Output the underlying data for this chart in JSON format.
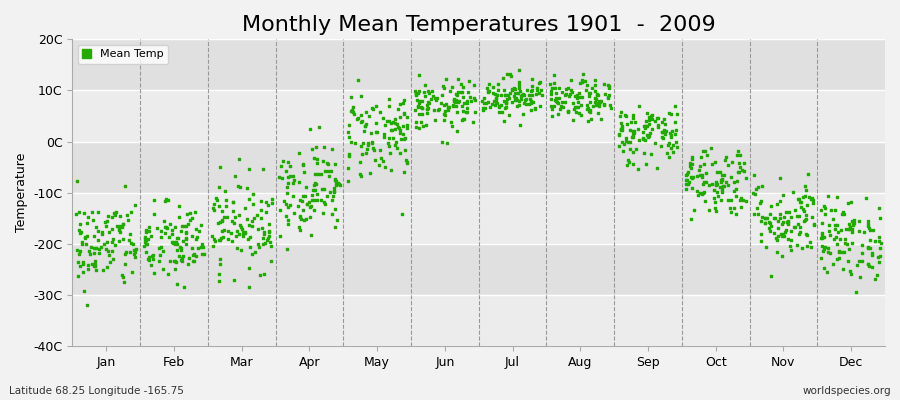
{
  "title": "Monthly Mean Temperatures 1901  -  2009",
  "ylabel": "Temperature",
  "xlabel_bottom_left": "Latitude 68.25 Longitude -165.75",
  "xlabel_bottom_right": "worldspecies.org",
  "legend_label": "Mean Temp",
  "dot_color": "#22aa00",
  "dot_size": 2.5,
  "ylim": [
    -40,
    20
  ],
  "yticks": [
    -40,
    -30,
    -20,
    -10,
    0,
    10,
    20
  ],
  "ytick_labels": [
    "-40C",
    "-30C",
    "-20C",
    "-10C",
    "0C",
    "10C",
    "20C"
  ],
  "background_color": "#f2f2f2",
  "plot_bg_bands": [
    "#e8e8e8",
    "#d8d8d8"
  ],
  "months": [
    "Jan",
    "Feb",
    "Mar",
    "Apr",
    "May",
    "Jun",
    "Jul",
    "Aug",
    "Sep",
    "Oct",
    "Nov",
    "Dec"
  ],
  "month_means": [
    -20.0,
    -20.0,
    -16.0,
    -9.0,
    1.5,
    7.0,
    9.0,
    8.0,
    1.5,
    -7.5,
    -15.0,
    -19.0
  ],
  "month_stds": [
    4.5,
    4.0,
    4.5,
    4.5,
    4.5,
    2.5,
    2.0,
    2.0,
    3.0,
    3.5,
    4.0,
    4.0
  ],
  "n_years": 109,
  "seed": 42,
  "title_fontsize": 16,
  "axis_label_fontsize": 9,
  "tick_fontsize": 9
}
